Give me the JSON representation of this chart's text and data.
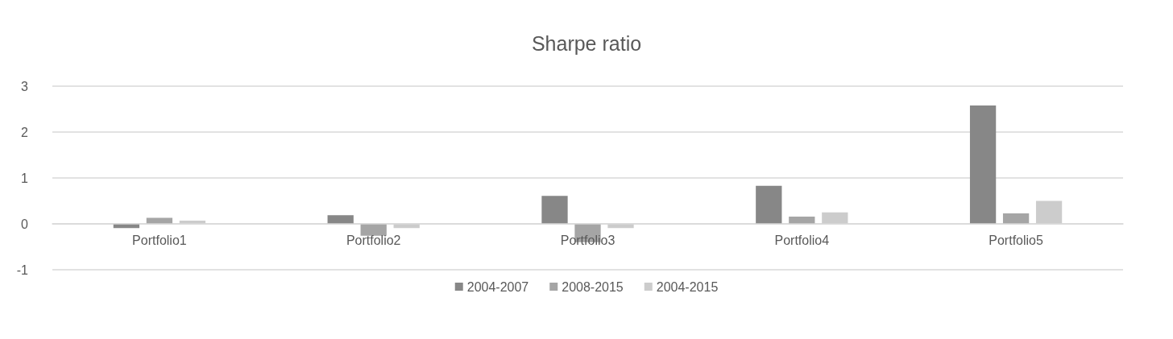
{
  "chart_data": {
    "type": "bar",
    "title": "Sharpe ratio",
    "categories": [
      "Portfolio1",
      "Portfolio2",
      "Portfolio3",
      "Portfolio4",
      "Portfolio5"
    ],
    "series": [
      {
        "name": "2004-2007",
        "color": "#878787",
        "values": [
          -0.09,
          0.19,
          0.61,
          0.83,
          2.58
        ]
      },
      {
        "name": "2008-2015",
        "color": "#a5a5a5",
        "values": [
          0.13,
          -0.26,
          -0.4,
          0.16,
          0.23
        ]
      },
      {
        "name": "2004-2015",
        "color": "#cccccc",
        "values": [
          0.07,
          -0.09,
          -0.09,
          0.25,
          0.5
        ]
      }
    ],
    "ylim": [
      -1,
      3
    ],
    "yticks": [
      -1,
      0,
      1,
      2,
      3
    ],
    "grid": "y",
    "legend": "bottom"
  }
}
